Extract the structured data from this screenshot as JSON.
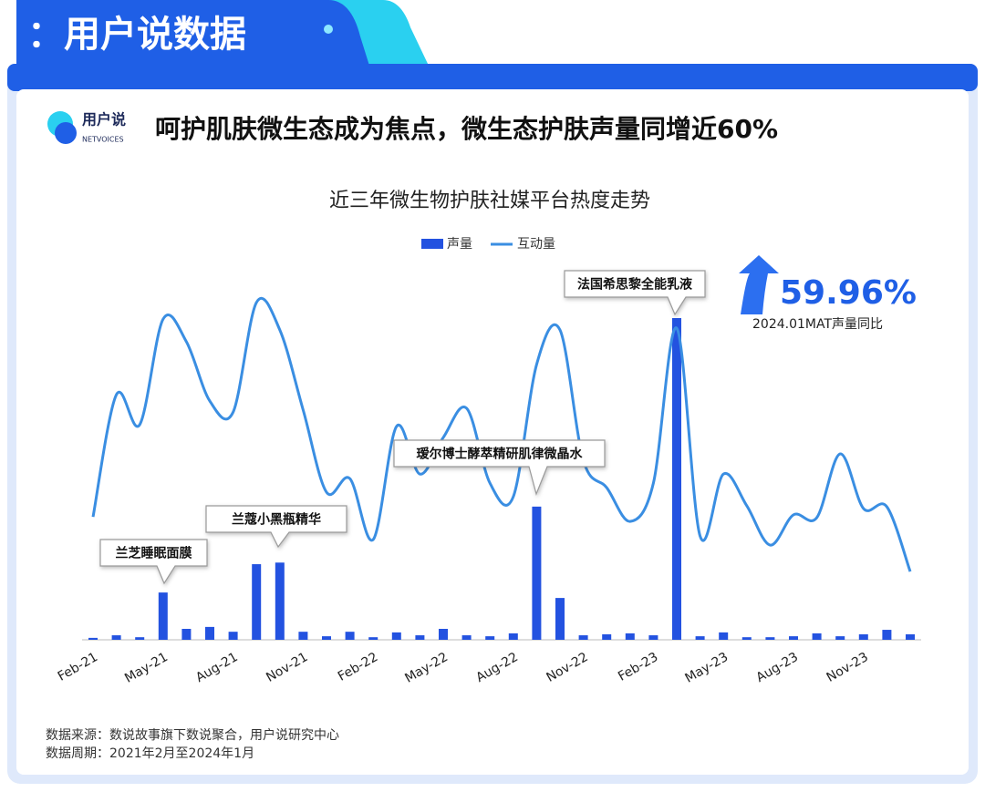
{
  "header": {
    "banner": "：用户说数据",
    "logo": "用户说",
    "logo_sub": "NETVOICES",
    "headline": "呵护肌肤微生态成为焦点，微生态护肤声量同增近60%"
  },
  "chart_data": {
    "type": "bar",
    "title": "近三年微生物护肤社媒平台热度走势",
    "categories": [
      "Feb-21",
      null,
      null,
      "May-21",
      null,
      null,
      "Aug-21",
      null,
      null,
      "Nov-21",
      null,
      null,
      "Feb-22",
      null,
      null,
      "May-22",
      null,
      null,
      "Aug-22",
      null,
      null,
      "Nov-22",
      null,
      null,
      "Feb-23",
      null,
      null,
      "May-23",
      null,
      null,
      "Aug-23",
      null,
      null,
      "Nov-23",
      null,
      null
    ],
    "series": [
      {
        "name": "声量",
        "type": "bar",
        "color": "#2352e0",
        "values": [
          0.6,
          1.4,
          0.8,
          14.7,
          3.4,
          4,
          2.5,
          23.5,
          24,
          2.5,
          1.1,
          2.5,
          0.8,
          2.3,
          1.4,
          3.4,
          1.4,
          1.1,
          2,
          41.4,
          13,
          1.4,
          1.7,
          2,
          1.4,
          100,
          1.1,
          2.3,
          0.8,
          0.8,
          1.1,
          2,
          1.1,
          1.7,
          3.1,
          1.7
        ]
      },
      {
        "name": "互动量",
        "type": "line",
        "axis": "y2",
        "color": "#3a8ee2",
        "values": [
          35.3,
          70.4,
          61.8,
          92.1,
          85.6,
          68.6,
          65.4,
          96.9,
          89,
          66,
          42.4,
          46.3,
          28.8,
          61.3,
          47.6,
          58.1,
          66.5,
          45,
          41.1,
          79.1,
          89,
          51.6,
          43.7,
          34,
          45,
          89.5,
          29.8,
          47.6,
          38.5,
          27.2,
          35.9,
          35.1,
          53.4,
          37.7,
          38.2,
          19.6
        ]
      }
    ],
    "ylim": [
      0,
      100
    ],
    "y2lim": [
      0,
      100
    ],
    "annotations": [
      "兰芝睡眠面膜",
      "兰蔻小黑瓶精华",
      "瑷尔博士酵萃精研肌律微晶水",
      "法国希思黎全能乳液"
    ],
    "highlight": {
      "label": "59.96%",
      "caption": "2024.01MAT声量同比"
    }
  },
  "footer": {
    "source": "数据来源：数说故事旗下数说聚合，用户说研究中心",
    "period": "数据周期：2021年2月至2024年1月"
  }
}
